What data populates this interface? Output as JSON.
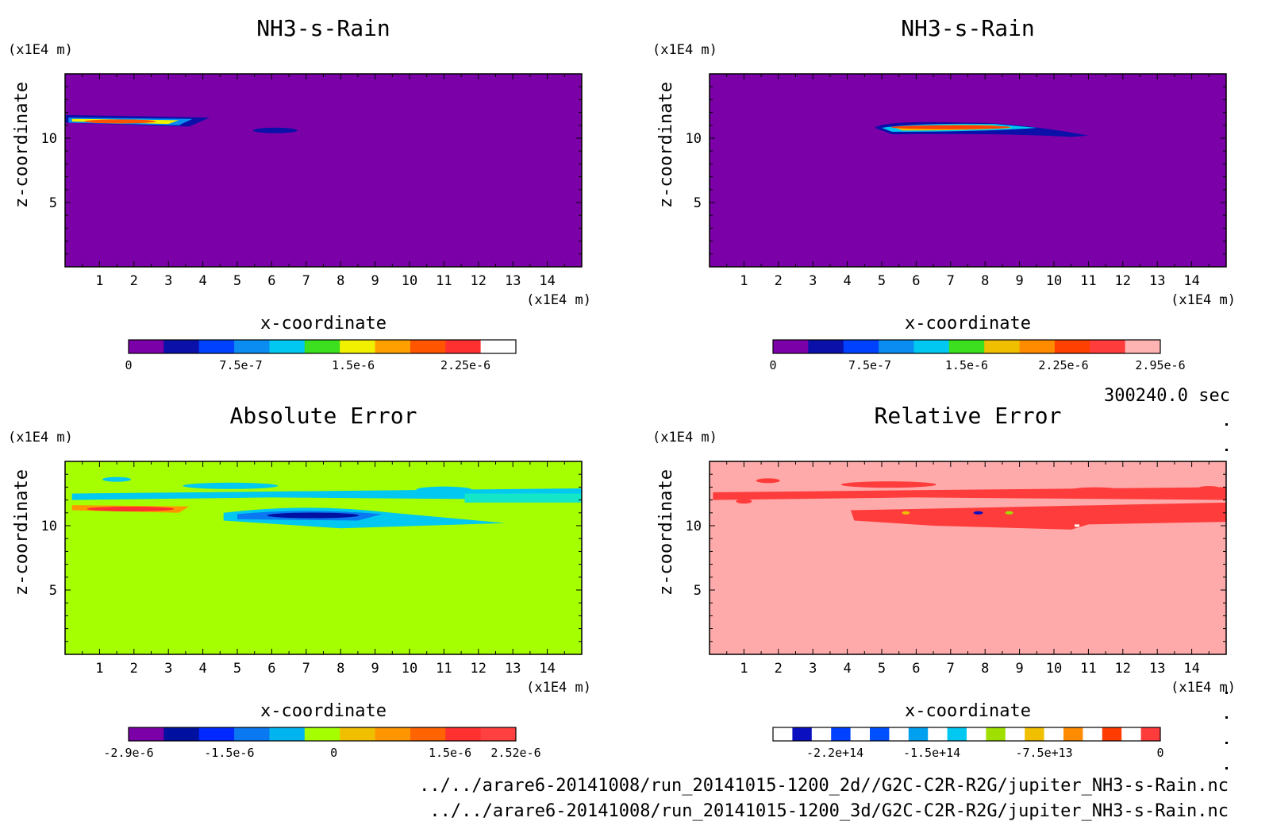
{
  "figure": {
    "time_label": "300240.0 sec",
    "file_paths": [
      "../../arare6-20141008/run_20141015-1200_2d//G2C-C2R-R2G/jupiter_NH3-s-Rain.nc",
      "../../arare6-20141008/run_20141015-1200_3d/G2C-C2R-R2G/jupiter_NH3-s-Rain.nc"
    ]
  },
  "chart_data": [
    {
      "type": "heatmap",
      "title": "NH3-s-Rain",
      "xlabel": "x-coordinate",
      "ylabel": "z-coordinate",
      "x_unit": "(x1E4 m)",
      "y_unit": "(x1E4 m)",
      "xlim": [
        0,
        15
      ],
      "ylim": [
        0,
        15
      ],
      "x_ticks": [
        "1",
        "2",
        "3",
        "4",
        "5",
        "6",
        "7",
        "8",
        "9",
        "10",
        "11",
        "12",
        "13",
        "14"
      ],
      "y_ticks": [
        "5",
        "10"
      ],
      "background_color": "#7b00a8",
      "features": [
        {
          "x": [
            0.1,
            4.2
          ],
          "z": [
            11.0,
            11.8
          ],
          "peak": 2.5e-06
        },
        {
          "x": [
            5.3,
            6.9
          ],
          "z": [
            10.3,
            10.9
          ],
          "peak": 3e-07
        }
      ],
      "colorbar": {
        "ticks": [
          "0",
          "7.5e-7",
          "1.5e-6",
          "2.25e-6"
        ],
        "colors": [
          "#7b00a8",
          "#0a10a8",
          "#0040ff",
          "#0a8cf0",
          "#00c8f0",
          "#3ce01e",
          "#f0f000",
          "#ffa000",
          "#ff5500",
          "#ff3030",
          "#ffffff"
        ]
      }
    },
    {
      "type": "heatmap",
      "title": "NH3-s-Rain",
      "xlabel": "x-coordinate",
      "ylabel": "z-coordinate",
      "x_unit": "(x1E4 m)",
      "y_unit": "(x1E4 m)",
      "xlim": [
        0,
        15
      ],
      "ylim": [
        0,
        15
      ],
      "x_ticks": [
        "1",
        "2",
        "3",
        "4",
        "5",
        "6",
        "7",
        "8",
        "9",
        "10",
        "11",
        "12",
        "13",
        "14"
      ],
      "y_ticks": [
        "5",
        "10"
      ],
      "background_color": "#7b00a8",
      "features": [
        {
          "x": [
            4.8,
            11.0
          ],
          "z": [
            10.2,
            11.3
          ],
          "peak": 2.9e-06
        }
      ],
      "colorbar": {
        "ticks": [
          "0",
          "7.5e-7",
          "1.5e-6",
          "2.25e-6",
          "2.95e-6"
        ],
        "colors": [
          "#7b00a8",
          "#0a10a8",
          "#0040ff",
          "#0a8cf0",
          "#00c8f0",
          "#3ce01e",
          "#f0c000",
          "#ff8c00",
          "#ff4000",
          "#ff3c3c",
          "#ffb4b4"
        ]
      }
    },
    {
      "type": "heatmap",
      "title": "Absolute Error",
      "xlabel": "x-coordinate",
      "ylabel": "z-coordinate",
      "x_unit": "(x1E4 m)",
      "y_unit": "(x1E4 m)",
      "xlim": [
        0,
        15
      ],
      "ylim": [
        0,
        15
      ],
      "x_ticks": [
        "1",
        "2",
        "3",
        "4",
        "5",
        "6",
        "7",
        "8",
        "9",
        "10",
        "11",
        "12",
        "13",
        "14"
      ],
      "y_ticks": [
        "5",
        "10"
      ],
      "background_color": "#a6ff00",
      "features": [
        {
          "x": [
            0.2,
            3.5
          ],
          "z": [
            11.0,
            11.6
          ],
          "peak": 2.52e-06
        },
        {
          "x": [
            4.8,
            11.0
          ],
          "z": [
            9.8,
            11.3
          ],
          "peak": -2.9e-06
        },
        {
          "x": [
            1.0,
            15.0
          ],
          "z": [
            11.8,
            13.8
          ],
          "peak": -3e-07
        }
      ],
      "colorbar": {
        "ticks": [
          "-2.9e-6",
          "-1.5e-6",
          "0",
          "1.5e-6",
          "2.52e-6"
        ],
        "colors": [
          "#7b00a8",
          "#0010a0",
          "#0028ff",
          "#0a78f0",
          "#00b4f0",
          "#a6ff00",
          "#f0c000",
          "#ff9600",
          "#ff6400",
          "#ff3030",
          "#ff4040"
        ]
      }
    },
    {
      "type": "heatmap",
      "title": "Relative Error",
      "xlabel": "x-coordinate",
      "ylabel": "z-coordinate",
      "x_unit": "(x1E4 m)",
      "y_unit": "(x1E4 m)",
      "xlim": [
        0,
        15
      ],
      "ylim": [
        0,
        15
      ],
      "x_ticks": [
        "1",
        "2",
        "3",
        "4",
        "5",
        "6",
        "7",
        "8",
        "9",
        "10",
        "11",
        "12",
        "13",
        "14"
      ],
      "y_ticks": [
        "5",
        "10"
      ],
      "background_color": "#ffaaaa",
      "features": [
        {
          "x": [
            4.0,
            15.0
          ],
          "z": [
            9.6,
            11.3
          ],
          "peak": -250000000000000.0
        },
        {
          "x": [
            0.2,
            15.0
          ],
          "z": [
            11.8,
            13.8
          ],
          "peak": -10000000000000.0
        }
      ],
      "colorbar": {
        "ticks": [
          "-2.2e+14",
          "-1.5e+14",
          "-7.5e+13",
          "0"
        ],
        "colors": [
          "#ffffff",
          "#0a10c0",
          "#ffffff",
          "#0040ff",
          "#ffffff",
          "#0050ff",
          "#ffffff",
          "#00a0f0",
          "#ffffff",
          "#00c8f0",
          "#ffffff",
          "#a0e000",
          "#ffffff",
          "#f0c000",
          "#ffffff",
          "#ff8c00",
          "#ffffff",
          "#ff3c00",
          "#ffffff",
          "#ff3c3c"
        ]
      }
    }
  ]
}
